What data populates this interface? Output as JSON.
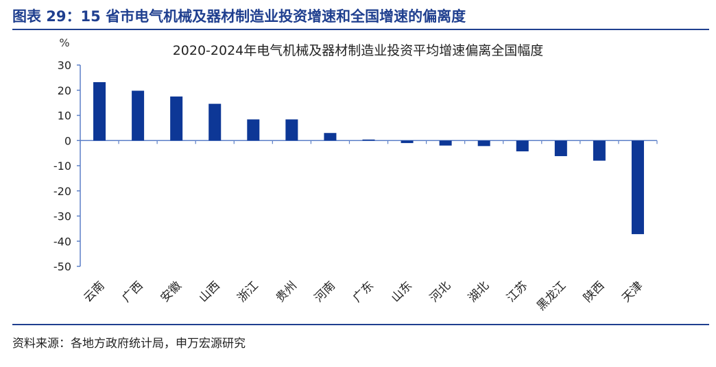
{
  "figure": {
    "title": "图表 29：15 省市电气机械及器材制造业投资增速和全国增速的偏离度",
    "source": "资料来源：各地方政府统计局，申万宏源研究"
  },
  "chart_data": {
    "type": "bar",
    "title": "2020-2024年电气机械及器材制造业投资平均增速偏离全国幅度",
    "ylabel": "%",
    "xlabel": "",
    "ylim": [
      -50,
      30
    ],
    "yticks": [
      30,
      20,
      10,
      0,
      -10,
      -20,
      -30,
      -40,
      -50
    ],
    "categories": [
      "云南",
      "广西",
      "安徽",
      "山西",
      "浙江",
      "贵州",
      "河南",
      "广东",
      "山东",
      "河北",
      "湖北",
      "江苏",
      "黑龙江",
      "陕西",
      "天津"
    ],
    "values": [
      23.2,
      19.8,
      17.5,
      14.6,
      8.4,
      8.4,
      3.0,
      0.4,
      -1.0,
      -2.0,
      -2.2,
      -4.3,
      -6.2,
      -8.0,
      -37.2
    ],
    "bar_color": "#0d3796",
    "grid": false,
    "legend": "none"
  }
}
